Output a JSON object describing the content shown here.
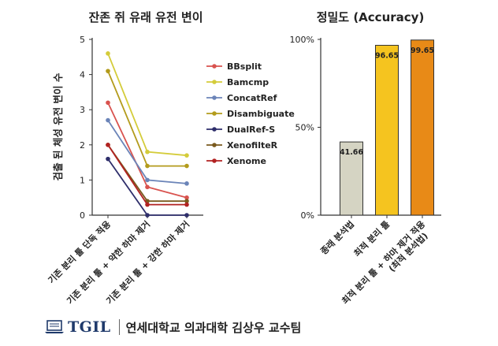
{
  "chart_data": [
    {
      "type": "line",
      "title": "잔존 쥐 유래 유전 변이",
      "ylabel": "검출 된 체성 유전 변이 수",
      "xlabel": "",
      "categories": [
        "기존 분리 툴 단독 적용",
        "기존 분리 툴 + 약한 하마 제거",
        "기존 분리 툴 + 강한 하마 제거"
      ],
      "ylim": [
        0,
        5
      ],
      "yticks": [
        "0",
        "1",
        "2",
        "3",
        "4",
        "5"
      ],
      "legend_position": "right",
      "series": [
        {
          "name": "BBsplit",
          "color": "#d9534f",
          "values": [
            3.2,
            0.8,
            0.5
          ]
        },
        {
          "name": "Bamcmp",
          "color": "#d4cc3a",
          "values": [
            4.6,
            1.8,
            1.7
          ]
        },
        {
          "name": "ConcatRef",
          "color": "#6b84b8",
          "values": [
            2.7,
            1.0,
            0.9
          ]
        },
        {
          "name": "Disambiguate",
          "color": "#b39b1c",
          "values": [
            4.1,
            1.4,
            1.4
          ]
        },
        {
          "name": "DualRef-S",
          "color": "#2e2e6b",
          "values": [
            1.6,
            0.0,
            0.0
          ]
        },
        {
          "name": "XenofilteR",
          "color": "#7a5a1e",
          "values": [
            2.0,
            0.4,
            0.4
          ]
        },
        {
          "name": "Xenome",
          "color": "#b22222",
          "values": [
            2.0,
            0.3,
            0.3
          ]
        }
      ]
    },
    {
      "type": "bar",
      "title": "정밀도 (Accuracy)",
      "categories": [
        "종래 분석법",
        "최적 분리 툴",
        "최적 분리 툴 + 하마 제거 적용\n(최적 분석법)"
      ],
      "values": [
        41.66,
        96.65,
        99.65
      ],
      "value_labels": [
        "41.66",
        "96.65",
        "99.65"
      ],
      "colors": [
        "#d5d4c3",
        "#f5c41f",
        "#e88a17"
      ],
      "ylim": [
        0,
        100
      ],
      "yticks": [
        "0%",
        "50%",
        "100%"
      ]
    }
  ],
  "footer": {
    "logo": "TGIL",
    "org": "연세대학교 의과대학 김상우 교수팀"
  }
}
